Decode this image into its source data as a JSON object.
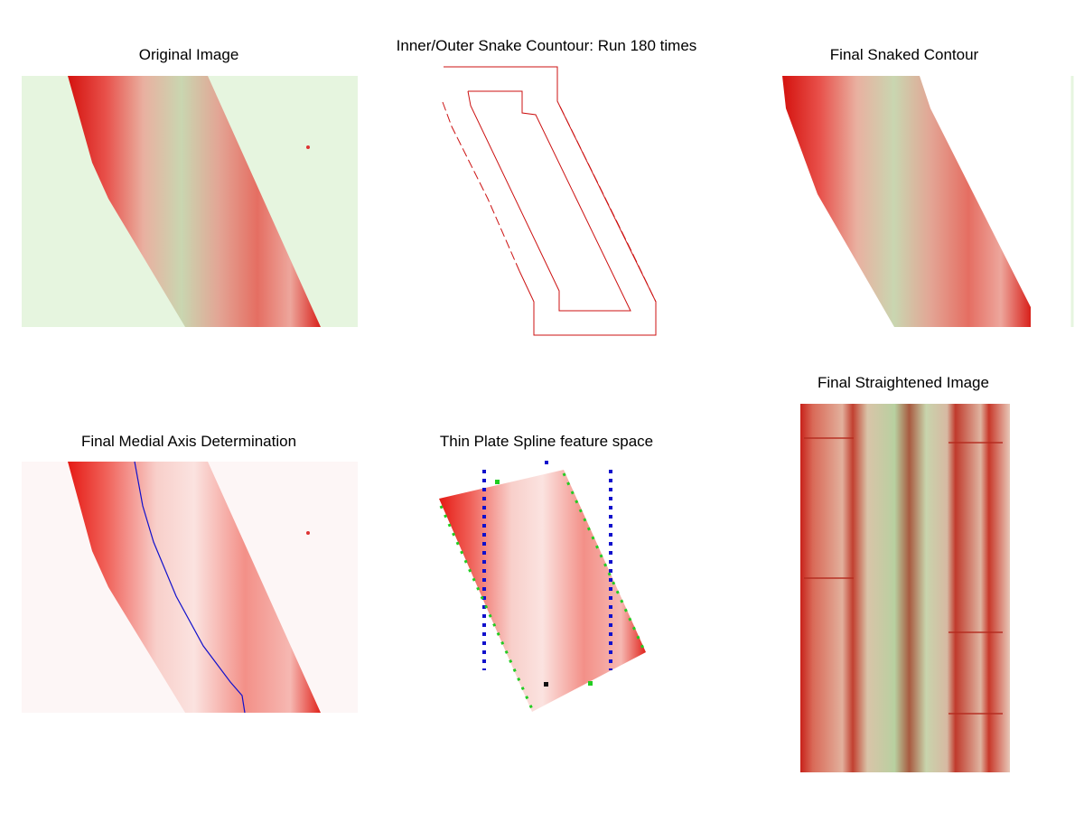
{
  "panels": [
    {
      "title": "Original Image"
    },
    {
      "title": "Inner/Outer Snake Countour: Run 180 times"
    },
    {
      "title": "Final Snaked Contour"
    },
    {
      "title": "Final Medial Axis Determination"
    },
    {
      "title": "Thin Plate Spline feature space"
    },
    {
      "title": "Final Straightened Image"
    }
  ]
}
